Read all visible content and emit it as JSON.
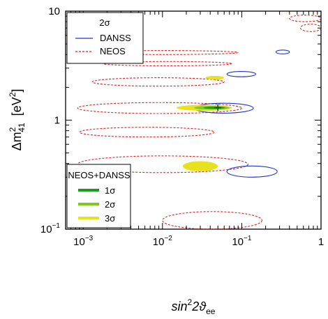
{
  "chart_data": {
    "type": "contour",
    "x_scale": "log",
    "y_scale": "log",
    "xlim": [
      0.0006,
      1
    ],
    "ylim": [
      0.1,
      10
    ],
    "x_ticks": [
      {
        "value": 0.001,
        "base": "10",
        "exp": "−3"
      },
      {
        "value": 0.01,
        "base": "10",
        "exp": "−2"
      },
      {
        "value": 0.1,
        "base": "10",
        "exp": "−1"
      },
      {
        "value": 1,
        "base": "1",
        "exp": ""
      }
    ],
    "y_ticks": [
      {
        "value": 0.1,
        "base": "10",
        "exp": "−1"
      },
      {
        "value": 1,
        "base": "1",
        "exp": ""
      },
      {
        "value": 10,
        "base": "10",
        "exp": ""
      }
    ],
    "xlabel": {
      "main": "sin",
      "sup1": "2",
      "mid": "2ϑ",
      "sub": "ee"
    },
    "ylabel": {
      "delta": "Δm",
      "sup": "2",
      "sub": "41",
      "unit_open": "[eV",
      "unit_sup": "2",
      "unit_close": "]"
    },
    "legend_top": {
      "title": "2σ",
      "entries": [
        {
          "label": "DANSS",
          "color": "#2233cc",
          "style": "solid"
        },
        {
          "label": "NEOS",
          "color": "#dd2222",
          "style": "dashed"
        }
      ]
    },
    "legend_bottom": {
      "title": "NEOS+DANSS",
      "entries": [
        {
          "label": "1σ",
          "color": "#1e9a1e"
        },
        {
          "label": "2σ",
          "color": "#7ecb1e"
        },
        {
          "label": "3σ",
          "color": "#e6e21e"
        }
      ]
    },
    "series": [
      {
        "name": "NEOS",
        "color": "#dd2222",
        "regions": [
          {
            "x": [
              0.0011,
              0.09
            ],
            "y": [
              4.0,
              4.35
            ]
          },
          {
            "x": [
              0.0018,
              0.075
            ],
            "y": [
              3.15,
              3.45
            ]
          },
          {
            "x": [
              0.0013,
              0.06
            ],
            "y": [
              2.05,
              2.45
            ]
          },
          {
            "x": [
              0.00085,
              0.1
            ],
            "y": [
              1.15,
              1.45
            ]
          },
          {
            "x": [
              0.0009,
              0.045
            ],
            "y": [
              0.7,
              0.86
            ]
          },
          {
            "x": [
              0.00085,
              0.12
            ],
            "y": [
              0.33,
              0.47
            ]
          },
          {
            "x": [
              0.4,
              1
            ],
            "y": [
              8.0,
              9.2
            ]
          },
          {
            "x": [
              0.55,
              1
            ],
            "y": [
              6.5,
              7.6
            ]
          },
          {
            "x": [
              0.01,
              0.18
            ],
            "y": [
              0.1,
              0.145
            ]
          }
        ]
      },
      {
        "name": "DANSS",
        "color": "#2233cc",
        "regions": [
          {
            "x": [
              0.27,
              0.4
            ],
            "y": [
              4.05,
              4.4
            ]
          },
          {
            "x": [
              0.065,
              0.15
            ],
            "y": [
              2.5,
              2.8
            ]
          },
          {
            "x": [
              0.025,
              0.14
            ],
            "y": [
              1.16,
              1.43
            ]
          },
          {
            "x": [
              0.065,
              0.28
            ],
            "y": [
              0.3,
              0.38
            ]
          }
        ]
      },
      {
        "name": "NEOS+DANSS 3σ",
        "color": "#e6e21e",
        "regions": [
          {
            "x": [
              0.018,
              0.05
            ],
            "y": [
              0.34,
              0.42
            ]
          },
          {
            "x": [
              0.015,
              0.075
            ],
            "y": [
              1.22,
              1.38
            ]
          },
          {
            "x": [
              0.035,
              0.06
            ],
            "y": [
              2.35,
              2.55
            ]
          }
        ]
      },
      {
        "name": "NEOS+DANSS 2σ",
        "color": "#7ecb1e",
        "regions": [
          {
            "x": [
              0.025,
              0.07
            ],
            "y": [
              1.25,
              1.35
            ]
          }
        ]
      },
      {
        "name": "NEOS+DANSS 1σ",
        "color": "#1e9a1e",
        "regions": [
          {
            "x": [
              0.033,
              0.062
            ],
            "y": [
              1.27,
              1.33
            ]
          }
        ]
      }
    ],
    "best_fit": {
      "x": 0.05,
      "y": 1.3
    }
  }
}
